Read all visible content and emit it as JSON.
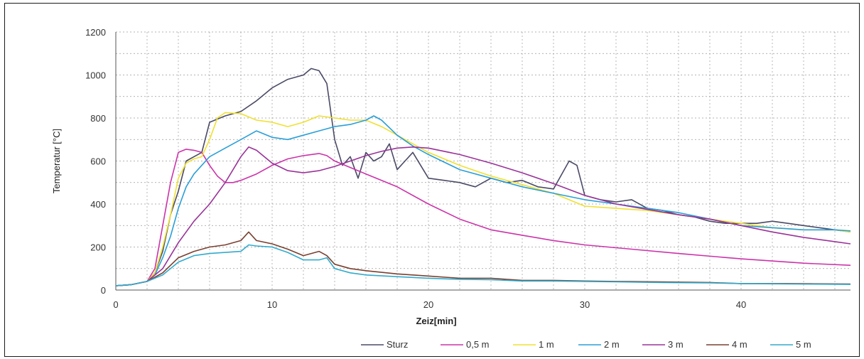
{
  "chart_data": {
    "type": "line",
    "title": "",
    "xlabel": "Zeiz[min]",
    "ylabel": "Temperatur [°C]",
    "xlim": [
      0,
      47
    ],
    "ylim": [
      0,
      1200
    ],
    "xticks": [
      0,
      10,
      20,
      30,
      40
    ],
    "yticks": [
      0,
      200,
      400,
      600,
      800,
      1000,
      1200
    ],
    "grid": "dotted",
    "legend_position": "bottom",
    "series": [
      {
        "name": "Sturz",
        "color": "#4a4a66",
        "x": [
          0,
          1,
          2,
          2.5,
          3,
          3.5,
          4,
          4.5,
          5,
          5.5,
          6,
          7,
          8,
          9,
          10,
          11,
          12,
          12.5,
          13,
          13.5,
          14,
          14.5,
          15,
          15.5,
          16,
          16.5,
          17,
          17.5,
          18,
          18.5,
          19,
          20,
          21,
          22,
          23,
          24,
          25,
          26,
          27,
          28,
          29,
          29.5,
          30,
          31,
          32,
          33,
          34,
          35,
          36,
          37,
          38,
          39,
          40,
          41,
          42,
          43,
          44,
          45,
          46,
          47
        ],
        "y": [
          20,
          25,
          40,
          80,
          180,
          350,
          460,
          600,
          620,
          640,
          780,
          810,
          830,
          880,
          940,
          980,
          1000,
          1030,
          1020,
          960,
          700,
          580,
          620,
          520,
          640,
          600,
          620,
          680,
          560,
          600,
          640,
          520,
          510,
          500,
          480,
          520,
          500,
          510,
          480,
          470,
          600,
          580,
          440,
          420,
          410,
          420,
          380,
          370,
          350,
          340,
          320,
          310,
          310,
          310,
          320,
          310,
          300,
          290,
          280,
          270
        ]
      },
      {
        "name": "0,5 m",
        "color": "#cc33aa",
        "x": [
          0,
          1,
          2,
          2.5,
          3,
          3.5,
          4,
          4.5,
          5,
          5.5,
          6,
          6.5,
          7,
          7.5,
          8,
          9,
          10,
          11,
          12,
          13,
          13.5,
          14,
          15,
          16,
          17,
          18,
          20,
          22,
          24,
          26,
          28,
          30,
          33,
          36,
          40,
          44,
          47
        ],
        "y": [
          20,
          25,
          40,
          100,
          300,
          500,
          640,
          655,
          650,
          640,
          580,
          530,
          500,
          500,
          510,
          540,
          580,
          610,
          625,
          635,
          625,
          600,
          570,
          540,
          510,
          480,
          400,
          330,
          280,
          255,
          230,
          210,
          190,
          170,
          145,
          125,
          115
        ]
      },
      {
        "name": "1 m",
        "color": "#f0e030",
        "x": [
          0,
          1,
          2,
          2.5,
          3,
          3.5,
          4,
          4.5,
          5,
          5.5,
          6,
          6.5,
          7,
          8,
          9,
          10,
          11,
          12,
          13,
          14,
          15,
          16,
          17,
          18,
          19,
          20,
          22,
          24,
          26,
          28,
          30,
          32,
          34,
          36,
          38,
          40,
          42,
          44,
          46,
          47
        ],
        "y": [
          20,
          25,
          40,
          80,
          200,
          350,
          520,
          590,
          610,
          620,
          700,
          800,
          825,
          820,
          790,
          780,
          760,
          780,
          810,
          800,
          790,
          790,
          760,
          720,
          680,
          640,
          580,
          530,
          490,
          450,
          390,
          380,
          370,
          350,
          330,
          310,
          290,
          280,
          280,
          270
        ]
      },
      {
        "name": "2 m",
        "color": "#2a9fd8",
        "x": [
          0,
          1,
          2,
          2.5,
          3,
          3.5,
          4,
          4.5,
          5,
          5.5,
          6,
          7,
          8,
          9,
          10,
          11,
          12,
          13,
          14,
          15,
          16,
          16.5,
          17,
          18,
          19,
          20,
          22,
          24,
          26,
          28,
          30,
          32,
          34,
          36,
          38,
          40,
          42,
          44,
          46,
          47
        ],
        "y": [
          20,
          25,
          40,
          70,
          150,
          250,
          380,
          480,
          540,
          580,
          620,
          660,
          700,
          740,
          710,
          700,
          720,
          740,
          760,
          770,
          790,
          810,
          790,
          720,
          670,
          630,
          560,
          520,
          480,
          450,
          420,
          400,
          380,
          360,
          330,
          300,
          290,
          280,
          280,
          275
        ]
      },
      {
        "name": "3 m",
        "color": "#9a3399",
        "x": [
          0,
          1,
          2,
          3,
          4,
          5,
          6,
          7,
          8,
          8.5,
          9,
          10,
          11,
          12,
          13,
          14,
          15,
          16,
          17,
          18,
          19,
          20,
          22,
          24,
          26,
          28,
          30,
          32,
          34,
          36,
          38,
          40,
          42,
          44,
          46,
          47
        ],
        "y": [
          20,
          25,
          40,
          100,
          220,
          320,
          400,
          500,
          620,
          665,
          650,
          590,
          555,
          545,
          555,
          575,
          600,
          625,
          645,
          660,
          665,
          660,
          630,
          590,
          545,
          495,
          440,
          400,
          375,
          350,
          330,
          300,
          270,
          245,
          225,
          215
        ]
      },
      {
        "name": "4 m",
        "color": "#7a4030",
        "x": [
          0,
          1,
          2,
          3,
          4,
          5,
          6,
          7,
          8,
          8.5,
          9,
          10,
          11,
          12,
          13,
          13.5,
          14,
          15,
          16,
          18,
          20,
          22,
          24,
          26,
          28,
          30,
          32,
          35,
          38,
          40,
          43,
          47
        ],
        "y": [
          20,
          25,
          40,
          80,
          150,
          180,
          200,
          210,
          230,
          270,
          230,
          215,
          190,
          160,
          180,
          160,
          120,
          100,
          90,
          75,
          65,
          55,
          55,
          45,
          45,
          42,
          40,
          38,
          35,
          30,
          30,
          28
        ]
      },
      {
        "name": "5 m",
        "color": "#33aacc",
        "x": [
          0,
          1,
          2,
          3,
          4,
          5,
          6,
          7,
          8,
          8.5,
          9,
          10,
          11,
          12,
          13,
          13.5,
          14,
          15,
          16,
          18,
          20,
          22,
          24,
          26,
          28,
          30,
          32,
          35,
          38,
          40,
          43,
          47
        ],
        "y": [
          20,
          25,
          40,
          70,
          130,
          160,
          170,
          175,
          180,
          210,
          205,
          200,
          175,
          140,
          140,
          150,
          100,
          80,
          70,
          62,
          55,
          50,
          48,
          42,
          42,
          40,
          38,
          35,
          33,
          30,
          28,
          26
        ]
      }
    ]
  }
}
